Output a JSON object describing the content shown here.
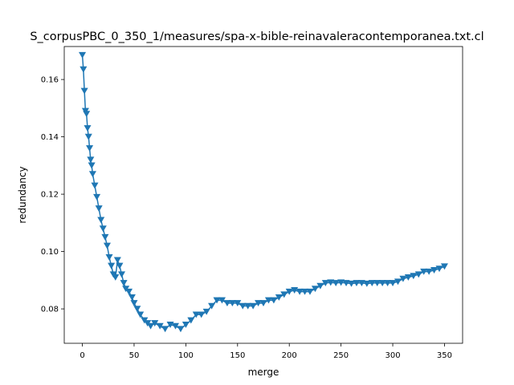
{
  "chart_data": {
    "type": "line",
    "title": "S_corpusPBC_0_350_1/measures/spa-x-bible-reinavaleracontemporanea.txt.cl",
    "xlabel": "merge",
    "ylabel": "redundancy",
    "xlim": [
      -17.5,
      367.5
    ],
    "ylim": [
      0.068,
      0.1715
    ],
    "xticks": [
      0,
      50,
      100,
      150,
      200,
      250,
      300,
      350
    ],
    "yticks": [
      0.08,
      0.1,
      0.12,
      0.14,
      0.16
    ],
    "ytick_labels": [
      "0.08",
      "0.10",
      "0.12",
      "0.14",
      "0.16"
    ],
    "grid": false,
    "marker": "triangle-down",
    "series": [
      {
        "color": "#1f77b4",
        "x": [
          0,
          1,
          2,
          3,
          4,
          5,
          6,
          7,
          8,
          9,
          10,
          12,
          14,
          16,
          18,
          20,
          22,
          24,
          26,
          28,
          30,
          32,
          34,
          36,
          38,
          40,
          42,
          45,
          48,
          50,
          53,
          56,
          60,
          63,
          66,
          70,
          75,
          80,
          85,
          90,
          95,
          100,
          105,
          110,
          115,
          120,
          125,
          130,
          135,
          140,
          145,
          150,
          155,
          160,
          165,
          170,
          175,
          180,
          185,
          190,
          195,
          200,
          205,
          210,
          215,
          220,
          225,
          230,
          235,
          240,
          245,
          250,
          255,
          260,
          265,
          270,
          275,
          280,
          285,
          290,
          295,
          300,
          305,
          310,
          315,
          320,
          325,
          330,
          335,
          340,
          345,
          350
        ],
        "y": [
          0.1685,
          0.1635,
          0.156,
          0.149,
          0.148,
          0.143,
          0.14,
          0.136,
          0.132,
          0.13,
          0.127,
          0.123,
          0.119,
          0.115,
          0.111,
          0.108,
          0.105,
          0.102,
          0.098,
          0.095,
          0.092,
          0.091,
          0.097,
          0.095,
          0.092,
          0.089,
          0.087,
          0.086,
          0.084,
          0.082,
          0.08,
          0.078,
          0.076,
          0.075,
          0.074,
          0.075,
          0.074,
          0.073,
          0.0745,
          0.074,
          0.073,
          0.0745,
          0.076,
          0.078,
          0.078,
          0.079,
          0.081,
          0.083,
          0.083,
          0.082,
          0.082,
          0.082,
          0.081,
          0.081,
          0.081,
          0.082,
          0.082,
          0.083,
          0.083,
          0.084,
          0.085,
          0.086,
          0.0865,
          0.086,
          0.086,
          0.086,
          0.087,
          0.088,
          0.089,
          0.0892,
          0.089,
          0.0892,
          0.089,
          0.0888,
          0.089,
          0.089,
          0.0888,
          0.089,
          0.089,
          0.089,
          0.089,
          0.089,
          0.0895,
          0.0905,
          0.091,
          0.0915,
          0.092,
          0.093,
          0.093,
          0.0935,
          0.094,
          0.0948
        ]
      }
    ]
  }
}
